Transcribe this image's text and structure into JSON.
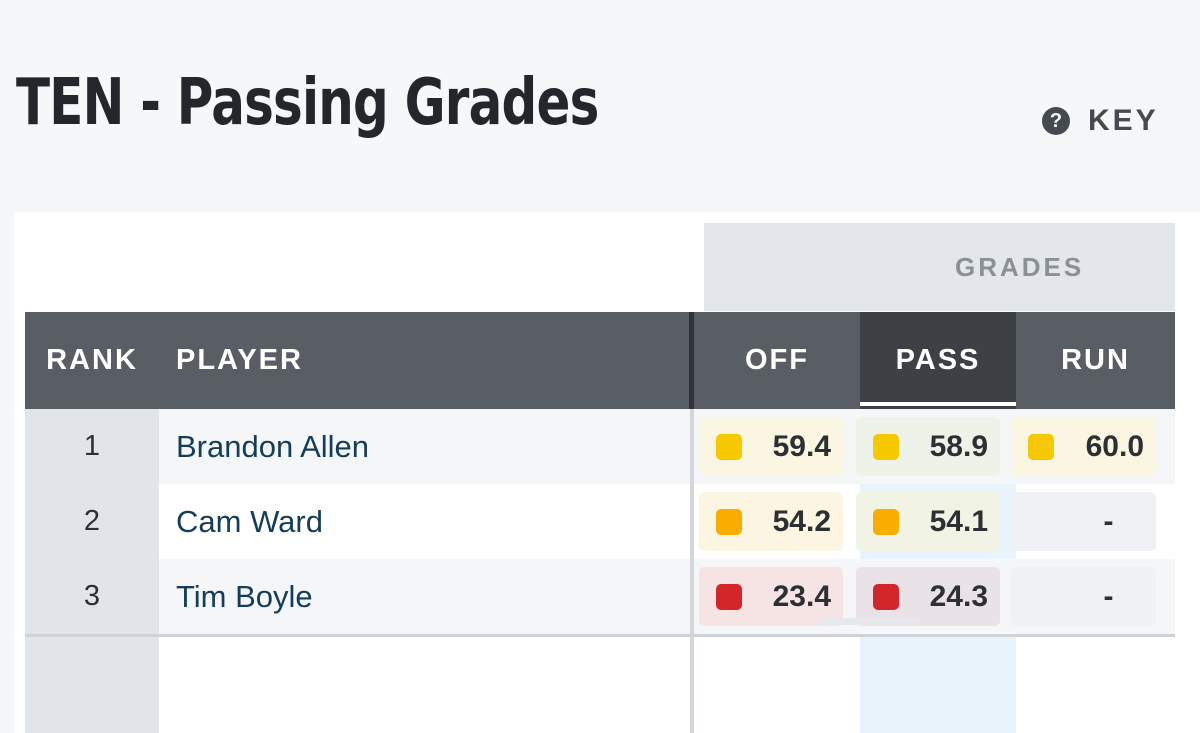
{
  "page_title": "TEN - Passing Grades",
  "key": {
    "icon": "question-icon",
    "icon_glyph": "?",
    "label": "KEY"
  },
  "table": {
    "group_label": "GRADES",
    "headers": {
      "rank": "RANK",
      "player": "PLAYER",
      "off": "OFF",
      "pass": "PASS",
      "run": "RUN"
    },
    "active_sort": "PASS",
    "rows": [
      {
        "rank": "1",
        "player": "Brandon Allen",
        "off": {
          "value": "59.4",
          "color": "#f5c800",
          "bg": "#fbf6e1"
        },
        "pass": {
          "value": "58.9",
          "color": "#f5c800",
          "bg": "#eef3e9"
        },
        "run": {
          "value": "60.0",
          "color": "#f5c800",
          "bg": "#fbf6e1"
        }
      },
      {
        "rank": "2",
        "player": "Cam Ward",
        "off": {
          "value": "54.2",
          "color": "#f8ad00",
          "bg": "#fcf5e1"
        },
        "pass": {
          "value": "54.1",
          "color": "#f8ad00",
          "bg": "#f1f3e4"
        },
        "run": {
          "value": "-",
          "color": "",
          "bg": ""
        }
      },
      {
        "rank": "3",
        "player": "Tim Boyle",
        "off": {
          "value": "23.4",
          "color": "#d2262b",
          "bg": "#f6e4e4"
        },
        "pass": {
          "value": "24.3",
          "color": "#d2262b",
          "bg": "#e9e2e6"
        },
        "run": {
          "value": "-",
          "color": "",
          "bg": ""
        }
      }
    ]
  }
}
